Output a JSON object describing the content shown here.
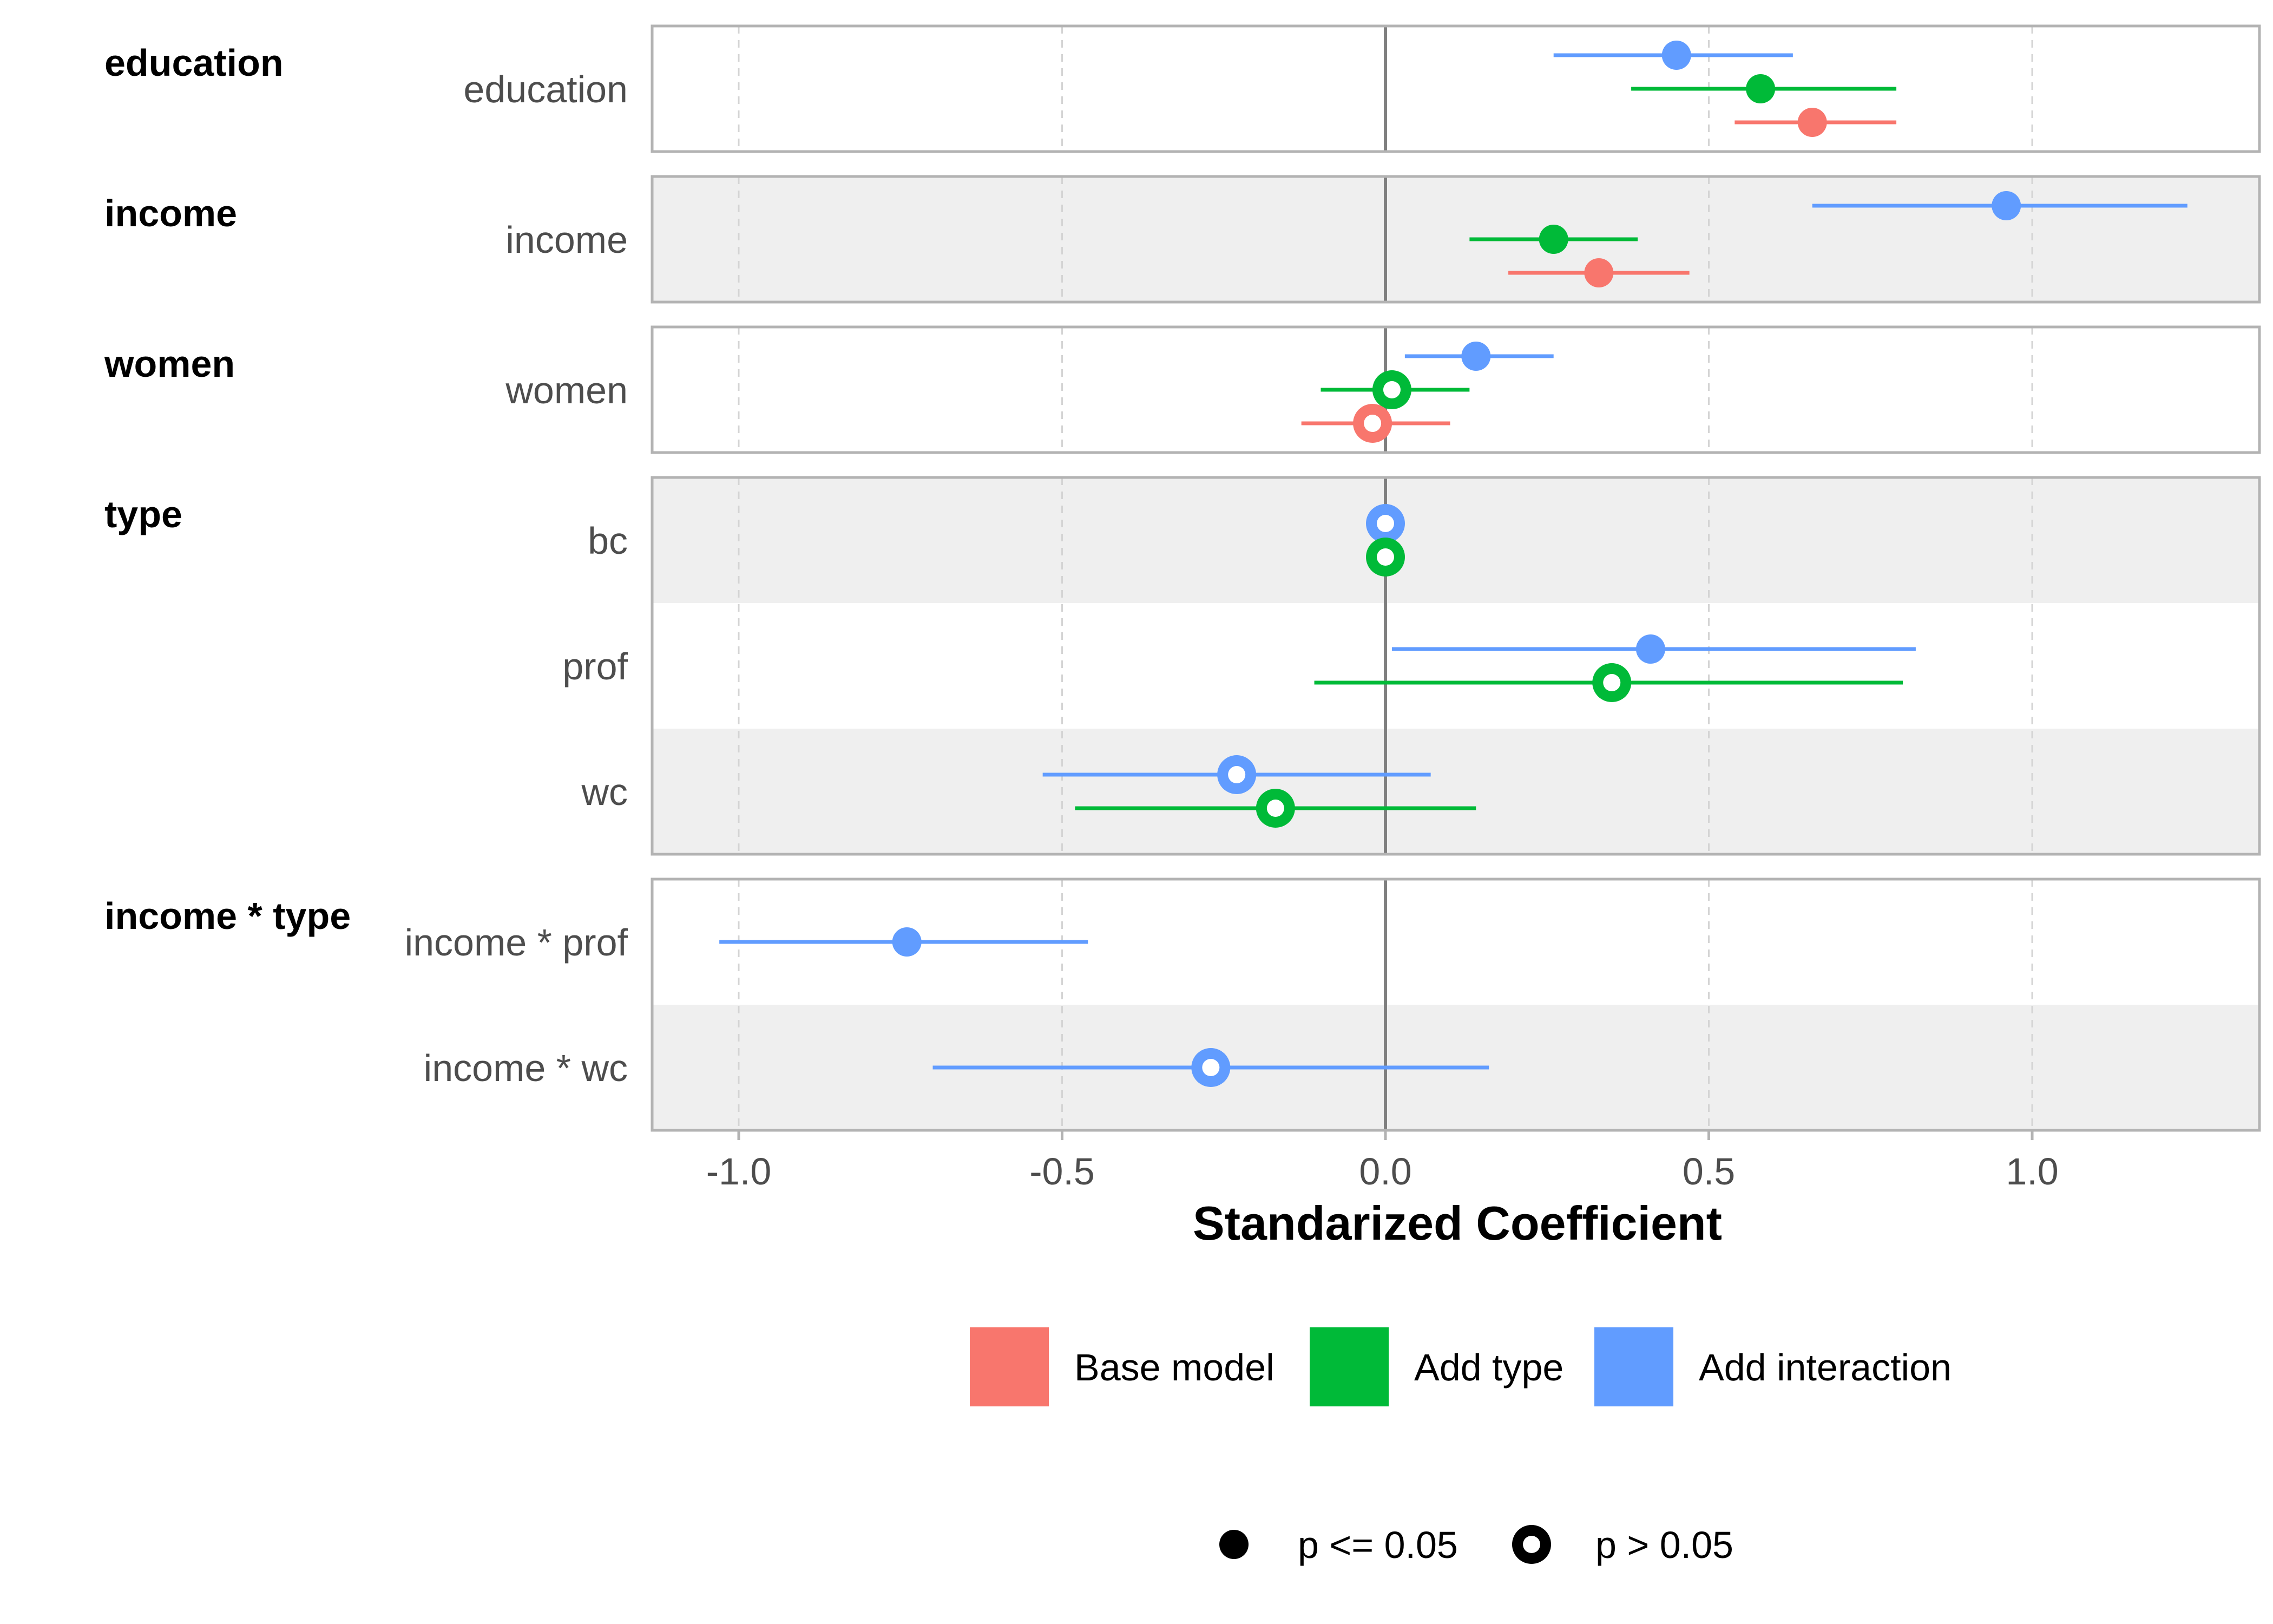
{
  "chart_data": {
    "type": "forest-plot",
    "xlabel": "Standarized Coefficient",
    "xlim": [
      -1.1,
      1.3
    ],
    "x_ticks": [
      -1.0,
      -0.5,
      0.0,
      0.5,
      1.0
    ],
    "x_tick_labels": [
      "-1.0",
      "-0.5",
      "0.0",
      "0.5",
      "1.0"
    ],
    "reference_line_x": 0,
    "grid": "vertical dashed at ticks",
    "legend_placement": "bottom",
    "colors": {
      "Base model": "#F8766D",
      "Add type": "#00BA38",
      "Add interaction": "#619CFF"
    },
    "models": [
      "Base model",
      "Add type",
      "Add interaction"
    ],
    "significance_legend": [
      {
        "label": "p <= 0.05",
        "shape": "filled-circle"
      },
      {
        "label": "p > 0.05",
        "shape": "open-circle"
      }
    ],
    "groups": [
      {
        "name": "education",
        "terms": [
          {
            "name": "education",
            "estimates": [
              {
                "model": "Add interaction",
                "estimate": 0.45,
                "low": 0.26,
                "high": 0.63,
                "significant": true
              },
              {
                "model": "Add type",
                "estimate": 0.58,
                "low": 0.38,
                "high": 0.79,
                "significant": true
              },
              {
                "model": "Base model",
                "estimate": 0.66,
                "low": 0.54,
                "high": 0.79,
                "significant": true
              }
            ]
          }
        ]
      },
      {
        "name": "income",
        "terms": [
          {
            "name": "income",
            "estimates": [
              {
                "model": "Add interaction",
                "estimate": 0.96,
                "low": 0.66,
                "high": 1.24,
                "significant": true
              },
              {
                "model": "Add type",
                "estimate": 0.26,
                "low": 0.13,
                "high": 0.39,
                "significant": true
              },
              {
                "model": "Base model",
                "estimate": 0.33,
                "low": 0.19,
                "high": 0.47,
                "significant": true
              }
            ]
          }
        ]
      },
      {
        "name": "women",
        "terms": [
          {
            "name": "women",
            "estimates": [
              {
                "model": "Add interaction",
                "estimate": 0.14,
                "low": 0.03,
                "high": 0.26,
                "significant": true
              },
              {
                "model": "Add type",
                "estimate": 0.01,
                "low": -0.1,
                "high": 0.13,
                "significant": false
              },
              {
                "model": "Base model",
                "estimate": -0.02,
                "low": -0.13,
                "high": 0.1,
                "significant": false
              }
            ]
          }
        ]
      },
      {
        "name": "type",
        "terms": [
          {
            "name": "bc",
            "estimates": [
              {
                "model": "Add interaction",
                "estimate": 0.0,
                "low": 0.0,
                "high": 0.0,
                "significant": false
              },
              {
                "model": "Add type",
                "estimate": 0.0,
                "low": 0.0,
                "high": 0.0,
                "significant": false
              }
            ]
          },
          {
            "name": "prof",
            "estimates": [
              {
                "model": "Add interaction",
                "estimate": 0.41,
                "low": 0.01,
                "high": 0.82,
                "significant": true
              },
              {
                "model": "Add type",
                "estimate": 0.35,
                "low": -0.11,
                "high": 0.8,
                "significant": false
              }
            ]
          },
          {
            "name": "wc",
            "estimates": [
              {
                "model": "Add interaction",
                "estimate": -0.23,
                "low": -0.53,
                "high": 0.07,
                "significant": false
              },
              {
                "model": "Add type",
                "estimate": -0.17,
                "low": -0.48,
                "high": 0.14,
                "significant": false
              }
            ]
          }
        ]
      },
      {
        "name": "income * type",
        "terms": [
          {
            "name": "income * prof",
            "estimates": [
              {
                "model": "Add interaction",
                "estimate": -0.74,
                "low": -1.03,
                "high": -0.46,
                "significant": true
              }
            ]
          },
          {
            "name": "income * wc",
            "estimates": [
              {
                "model": "Add interaction",
                "estimate": -0.27,
                "low": -0.7,
                "high": 0.16,
                "significant": false
              }
            ]
          }
        ]
      }
    ]
  }
}
